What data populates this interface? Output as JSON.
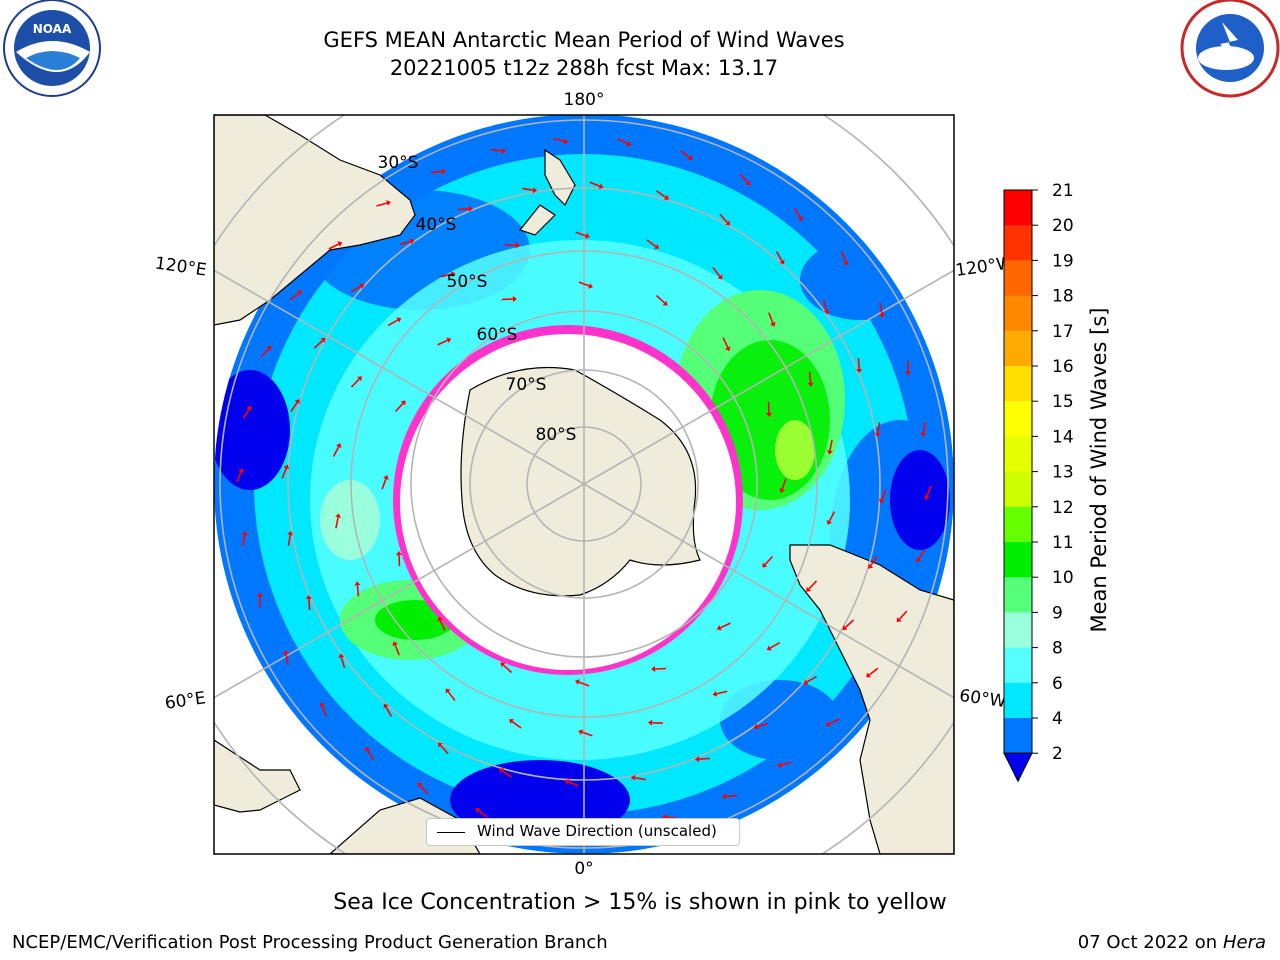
{
  "title": {
    "line1": "GEFS MEAN Antarctic Mean Period of Wind Waves",
    "line2": "20221005 t12z 288h fcst   Max: 13.17"
  },
  "map": {
    "projection": "south-polar-stereographic",
    "longitude_labels": {
      "top": "180°",
      "bottom": "0°",
      "upper_left": "120°E",
      "lower_left": "60°E",
      "upper_right": "120°W",
      "lower_right": "60°W"
    },
    "latitude_labels": [
      "30°S",
      "40°S",
      "50°S",
      "60°S",
      "70°S",
      "80°S"
    ],
    "colors": {
      "land": "#efecdc",
      "ice_free_no_data": "#ffffff",
      "sea_ice_edge": "#ff33cc",
      "arrows": "#ff0000",
      "graticule": "#b4b4b4"
    }
  },
  "legend": {
    "label": "Wind Wave Direction (unscaled)"
  },
  "colorbar": {
    "label": "Mean Period of Wind Waves [s]",
    "ticks": [
      "21",
      "20",
      "19",
      "18",
      "17",
      "16",
      "15",
      "14",
      "13",
      "12",
      "11",
      "10",
      "9",
      "8",
      "6",
      "4",
      "2"
    ],
    "extend": "min",
    "bin_colors": [
      "#ff0000",
      "#ff3300",
      "#ff6600",
      "#ff8800",
      "#ffaa00",
      "#ffdd00",
      "#ffff00",
      "#e6ff00",
      "#ccff00",
      "#66ff00",
      "#00ee00",
      "#55ff77",
      "#99ffdd",
      "#55ffff",
      "#00e8ff",
      "#0077ff"
    ],
    "extend_color": "#0000ee"
  },
  "caption": "Sea Ice Concentration > 15% is shown in pink to yellow",
  "footer": {
    "left": "NCEP/EMC/Verification Post Processing Product Generation Branch",
    "date": "07 Oct 2022 on ",
    "host": "Hera"
  },
  "logos": {
    "left": "noaa-logo",
    "right": "national-weather-service-logo"
  }
}
